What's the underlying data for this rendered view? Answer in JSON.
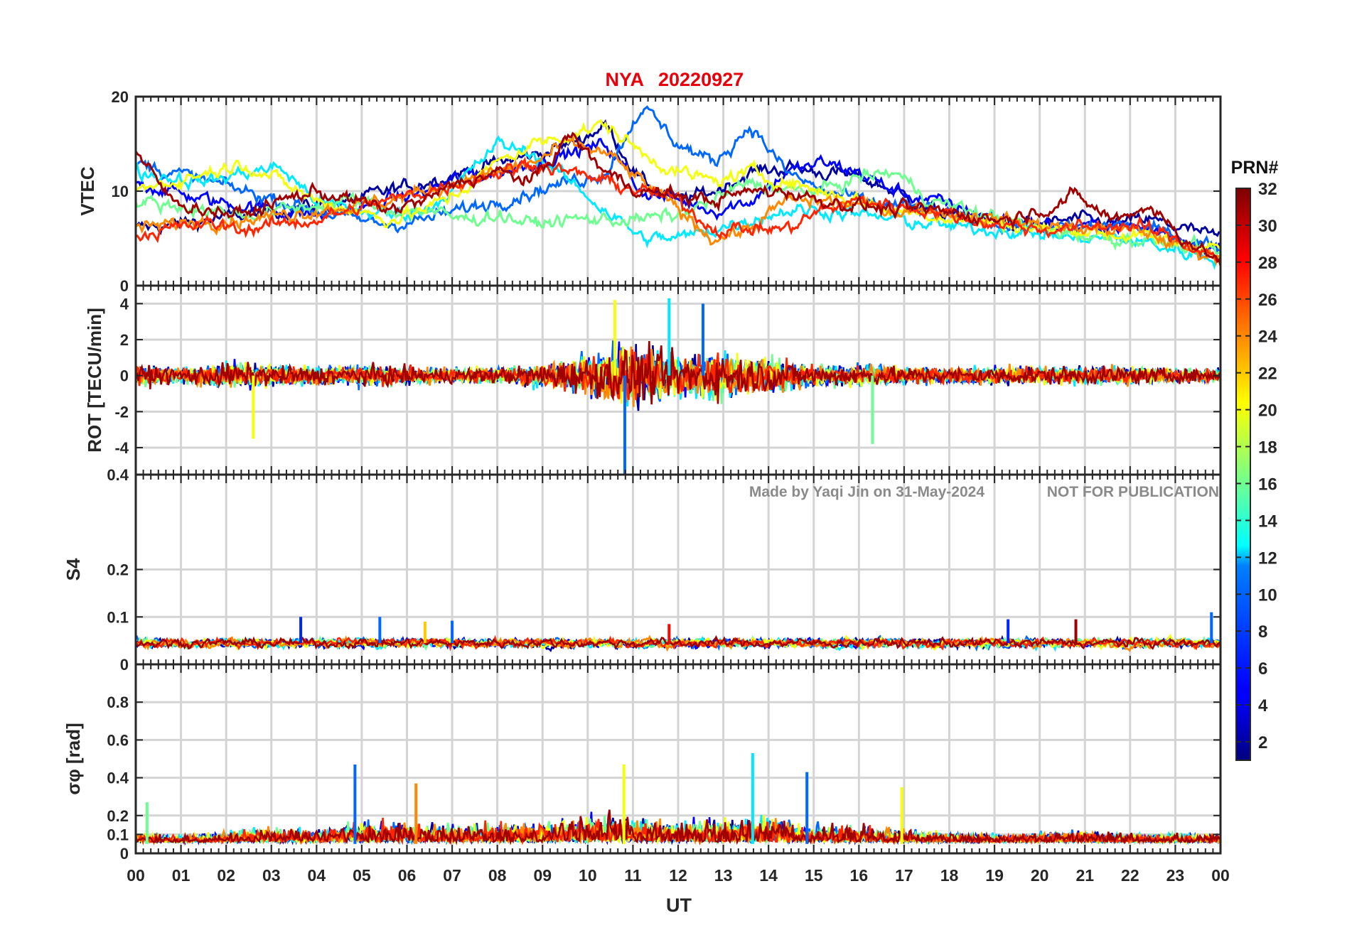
{
  "title": {
    "station": "NYA",
    "date": "20220927",
    "color": "#e8000b"
  },
  "watermark": {
    "made_by": "Made by Yaqi Jin on 31-May-2024",
    "notice": "NOT FOR PUBLICATION"
  },
  "x_axis": {
    "label": "UT",
    "range": [
      0,
      24
    ],
    "tick_labels": [
      "00",
      "01",
      "02",
      "03",
      "04",
      "05",
      "06",
      "07",
      "08",
      "09",
      "10",
      "11",
      "12",
      "13",
      "14",
      "15",
      "16",
      "17",
      "18",
      "19",
      "20",
      "21",
      "22",
      "23",
      "00"
    ]
  },
  "colorbar": {
    "title": "PRN#",
    "range": [
      1,
      32
    ],
    "tick_labels": [
      "2",
      "4",
      "6",
      "8",
      "10",
      "12",
      "14",
      "16",
      "18",
      "20",
      "22",
      "24",
      "26",
      "28",
      "30",
      "32"
    ],
    "colormap": "jet"
  },
  "chart_data": [
    {
      "type": "line",
      "id": "vtec",
      "ylabel": "VTEC",
      "ylim": [
        0,
        20
      ],
      "yticks": [
        "0",
        "10",
        "20"
      ],
      "grid": true,
      "series": [
        {
          "prn": 2,
          "x": [
            0,
            0.8,
            1.6,
            2.4,
            3.2,
            4,
            4.8,
            5.6,
            6.4,
            7.2,
            8,
            8.8,
            9.6,
            10.4,
            11.2,
            12,
            12.8,
            13.6,
            14.4,
            15.2,
            16,
            16.8,
            17.6,
            18.4,
            19.2,
            20,
            20.8,
            21.6,
            22.4,
            23.2,
            24
          ],
          "values": [
            6,
            6.5,
            7,
            7.5,
            8,
            8.5,
            9,
            10,
            11,
            12,
            13,
            13.8,
            15,
            17,
            11,
            9,
            10,
            12,
            12.5,
            12,
            11.5,
            10,
            8,
            7,
            6.5,
            6.5,
            7,
            6.5,
            7,
            6,
            5
          ]
        },
        {
          "prn": 5,
          "x": [
            0,
            0.8,
            1.6,
            2.4,
            3.2,
            4,
            4.8,
            5.6,
            6.4,
            7.2,
            8,
            8.8,
            9.6,
            10.4,
            11.2,
            12,
            12.8,
            13.6,
            14.4,
            15.2,
            16,
            16.8,
            17.6,
            18.4,
            19.2,
            20,
            20.8,
            21.6,
            22.4,
            23.2,
            24
          ],
          "values": [
            11,
            10,
            9,
            8.5,
            8,
            7.5,
            8,
            9,
            10,
            11.5,
            12,
            13,
            14,
            15,
            10,
            9,
            8,
            9,
            12,
            13,
            12,
            10,
            9,
            8,
            7,
            6.5,
            6,
            6.5,
            6,
            5,
            4
          ]
        },
        {
          "prn": 8,
          "x": [
            0,
            0.8,
            1.6,
            2.4,
            3.2,
            4,
            4.8,
            5.6,
            6.4,
            7.2,
            8,
            8.8,
            9.6,
            10.4,
            11.2,
            12,
            12.8,
            13.6,
            14.4,
            15.2,
            16,
            16.8,
            17.6,
            18.4,
            19.2,
            20,
            20.8,
            21.6,
            22.4,
            23.2,
            24
          ],
          "values": [
            13,
            12,
            11,
            10,
            9,
            8,
            7,
            6.5,
            7,
            8,
            9,
            10,
            11,
            12,
            19,
            15,
            13,
            17,
            12,
            10,
            9,
            8.5,
            8,
            7,
            6.5,
            6,
            6,
            6.5,
            6,
            5,
            4
          ]
        },
        {
          "prn": 12,
          "x": [
            0,
            0.8,
            1.6,
            2.4,
            3.2,
            4,
            4.8,
            5.6,
            6.4,
            7.2,
            8,
            8.8,
            9.6,
            10.4,
            11.2,
            12,
            12.8,
            13.6,
            14.4,
            15.2,
            16,
            16.8,
            17.6,
            18.4,
            19.2,
            20,
            20.8,
            21.6,
            22.4,
            23.2,
            24
          ],
          "values": [
            12,
            11.5,
            11,
            12,
            12.5,
            9,
            8,
            7.5,
            8,
            11,
            15,
            14,
            11,
            8,
            5,
            5,
            6,
            7,
            8,
            8,
            7.5,
            7,
            6.5,
            6,
            6,
            5.5,
            5,
            5,
            4.5,
            3.5,
            3
          ]
        },
        {
          "prn": 16,
          "x": [
            0,
            0.8,
            1.6,
            2.4,
            3.2,
            4,
            4.8,
            5.6,
            6.4,
            7.2,
            8,
            8.8,
            9.6,
            10.4,
            11.2,
            12,
            12.8,
            13.6,
            14.4,
            15.2,
            16,
            16.8,
            17.6,
            18.4,
            19.2,
            20,
            20.8,
            21.6,
            22.4,
            23.2,
            24
          ],
          "values": [
            9,
            8.5,
            8,
            7.5,
            8,
            8.5,
            9,
            8,
            8,
            7,
            7.5,
            6.5,
            7,
            7,
            7,
            7.5,
            9,
            11,
            10,
            10,
            11.5,
            12,
            9,
            8,
            7,
            6,
            5.5,
            5,
            5,
            4,
            3.5
          ]
        },
        {
          "prn": 20,
          "x": [
            0,
            0.8,
            1.6,
            2.4,
            3.2,
            4,
            4.8,
            5.6,
            6.4,
            7.2,
            8,
            8.8,
            9.6,
            10.4,
            11.2,
            12,
            12.8,
            13.6,
            14.4,
            15.2,
            16,
            16.8,
            17.6,
            18.4,
            19.2,
            20,
            20.8,
            21.6,
            22.4,
            23.2,
            24
          ],
          "values": [
            10,
            11,
            12,
            13,
            11,
            9,
            8,
            7,
            8,
            10,
            13,
            15,
            16,
            17,
            14,
            12,
            11,
            12,
            11,
            10,
            9,
            8,
            7.5,
            7,
            6.5,
            6,
            6,
            5.5,
            5,
            4.5,
            4
          ]
        },
        {
          "prn": 24,
          "x": [
            0,
            0.8,
            1.6,
            2.4,
            3.2,
            4,
            4.8,
            5.6,
            6.4,
            7.2,
            8,
            8.8,
            9.6,
            10.4,
            11.2,
            12,
            12.8,
            13.6,
            14.4,
            15.2,
            16,
            16.8,
            17.6,
            18.4,
            19.2,
            20,
            20.8,
            21.6,
            22.4,
            23.2,
            24
          ],
          "values": [
            6,
            6.5,
            7,
            7,
            7.5,
            8,
            8.5,
            9,
            10,
            11,
            12,
            13,
            15,
            14,
            11,
            8,
            5,
            6,
            9,
            9,
            8.5,
            8,
            8,
            7.5,
            7,
            6.5,
            6,
            6,
            5.5,
            4,
            3
          ]
        },
        {
          "prn": 27,
          "x": [
            0,
            0.8,
            1.6,
            2.4,
            3.2,
            4,
            4.8,
            5.6,
            6.4,
            7.2,
            8,
            8.8,
            9.6,
            10.4,
            11.2,
            12,
            12.8,
            13.6,
            14.4,
            15.2,
            16,
            16.8,
            17.6,
            18.4,
            19.2,
            20,
            20.8,
            21.6,
            22.4,
            23.2,
            24
          ],
          "values": [
            5.5,
            6,
            6.5,
            6,
            6.5,
            7,
            8,
            9,
            10,
            11,
            12,
            13,
            12,
            11,
            10,
            9,
            6,
            6,
            6,
            8,
            9,
            8.5,
            8,
            7,
            6.5,
            6,
            6,
            6.5,
            6,
            4.5,
            3
          ]
        },
        {
          "prn": 31,
          "x": [
            0,
            0.8,
            1.6,
            2.4,
            3.2,
            4,
            4.8,
            5.6,
            6.4,
            7.2,
            8,
            8.8,
            9.6,
            10.4,
            11.2,
            12,
            12.8,
            13.6,
            14.4,
            15.2,
            16,
            16.8,
            17.6,
            18.4,
            19.2,
            20,
            20.8,
            21.6,
            22.4,
            23.2,
            24
          ],
          "values": [
            14,
            9,
            8,
            7.5,
            9,
            10,
            9,
            8,
            9,
            11,
            12,
            11,
            16,
            12,
            10,
            9.5,
            9,
            10,
            10,
            9,
            8.5,
            8,
            8,
            7.5,
            7,
            8,
            9.5,
            7,
            8.5,
            5,
            2.5
          ]
        }
      ]
    },
    {
      "type": "line",
      "id": "rot",
      "ylabel": "ROT [TECU/min]",
      "ylim": [
        -5.5,
        5
      ],
      "yticks": [
        "-4",
        "-2",
        "0",
        "2",
        "4"
      ],
      "grid": true,
      "envelope": {
        "x": [
          0,
          1,
          2,
          3,
          4,
          5,
          6,
          7,
          8,
          9,
          10,
          10.5,
          11,
          11.5,
          12,
          12.5,
          13,
          13.5,
          14,
          14.5,
          15,
          16,
          17,
          18,
          19,
          20,
          21,
          22,
          23,
          24
        ],
        "amplitude": [
          1.2,
          0.9,
          1.5,
          1.2,
          1.0,
          1.2,
          1.0,
          0.9,
          0.9,
          1.4,
          2.2,
          2.8,
          3.5,
          3.0,
          2.5,
          2.6,
          2.6,
          2.2,
          2.0,
          1.6,
          1.2,
          1.2,
          1.0,
          0.9,
          1.0,
          1.1,
          1.0,
          1.0,
          0.8,
          0.7
        ]
      },
      "series_prns": [
        2,
        5,
        8,
        12,
        16,
        20,
        24,
        27,
        31
      ],
      "spikes": [
        {
          "x": 10.82,
          "value": -5.5
        },
        {
          "x": 10.6,
          "value": 4.2
        },
        {
          "x": 11.8,
          "value": 4.3
        },
        {
          "x": 12.55,
          "value": 4.0
        },
        {
          "x": 2.6,
          "value": -3.5
        },
        {
          "x": 16.3,
          "value": -3.8
        }
      ]
    },
    {
      "type": "line",
      "id": "s4",
      "ylabel": "S4",
      "ylim": [
        0,
        0.4
      ],
      "yticks": [
        "0",
        "0.1",
        "0.2",
        "0.4"
      ],
      "grid": true,
      "baseline": 0.045,
      "noise": 0.012,
      "series_prns": [
        2,
        5,
        8,
        12,
        16,
        20,
        24,
        27,
        31
      ],
      "peaks": [
        {
          "x": 3.65,
          "value": 0.1
        },
        {
          "x": 5.4,
          "value": 0.1
        },
        {
          "x": 6.4,
          "value": 0.09
        },
        {
          "x": 7.0,
          "value": 0.092
        },
        {
          "x": 11.8,
          "value": 0.085
        },
        {
          "x": 19.3,
          "value": 0.095
        },
        {
          "x": 20.8,
          "value": 0.095
        },
        {
          "x": 23.8,
          "value": 0.11
        }
      ]
    },
    {
      "type": "line",
      "id": "sigma_phi",
      "ylabel": "σφ [rad]",
      "ylim": [
        0,
        1
      ],
      "yticks": [
        "0",
        "0.1",
        "0.2",
        "0.4",
        "0.6",
        "0.8"
      ],
      "grid": true,
      "envelope": {
        "x": [
          0,
          1,
          2,
          3,
          4,
          5,
          6,
          7,
          8,
          9,
          10,
          11,
          12,
          13,
          14,
          15,
          16,
          17,
          18,
          19,
          20,
          21,
          22,
          23,
          24
        ],
        "amplitude": [
          0.08,
          0.06,
          0.1,
          0.15,
          0.12,
          0.2,
          0.2,
          0.17,
          0.18,
          0.2,
          0.25,
          0.25,
          0.2,
          0.22,
          0.25,
          0.16,
          0.15,
          0.13,
          0.09,
          0.08,
          0.09,
          0.1,
          0.08,
          0.08,
          0.08
        ]
      },
      "series_prns": [
        2,
        5,
        8,
        12,
        16,
        20,
        24,
        27,
        31
      ],
      "peaks": [
        {
          "x": 4.85,
          "value": 0.47
        },
        {
          "x": 10.8,
          "value": 0.47
        },
        {
          "x": 13.65,
          "value": 0.53
        },
        {
          "x": 14.85,
          "value": 0.43
        },
        {
          "x": 16.95,
          "value": 0.35
        },
        {
          "x": 0.25,
          "value": 0.27
        },
        {
          "x": 6.2,
          "value": 0.37
        }
      ]
    }
  ]
}
